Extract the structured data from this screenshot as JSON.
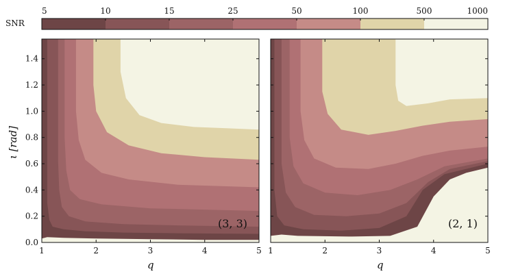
{
  "chart_data": {
    "type": "contour",
    "colorbar": {
      "title": "SNR",
      "levels": [
        "5",
        "10",
        "15",
        "25",
        "50",
        "100",
        "500",
        "1000"
      ],
      "colors": [
        "#6d4546",
        "#875557",
        "#9c6466",
        "#b07174",
        "#c58b87",
        "#e0d4a9",
        "#f4f4e4"
      ]
    },
    "xlabel": "q",
    "ylabel": "ι [rad]",
    "xlim": [
      1,
      5
    ],
    "ylim": [
      0,
      1.55
    ],
    "x_ticks": [
      1,
      2,
      3,
      4,
      5
    ],
    "y_ticks": [
      0.0,
      0.2,
      0.4,
      0.6,
      0.8,
      1.0,
      1.2,
      1.4
    ],
    "x_tick_labels": [
      "1",
      "2",
      "3",
      "4",
      "5"
    ],
    "y_tick_labels": [
      "0.0",
      "0.2",
      "0.4",
      "0.6",
      "0.8",
      "1.0",
      "1.2",
      "1.4"
    ],
    "panels": [
      {
        "annotation": "(3, 3)",
        "contours": [
          {
            "level": "5",
            "points": [
              [
                1.0,
                1.55
              ],
              [
                1.0,
                0.03
              ],
              [
                1.1,
                0.04
              ],
              [
                1.4,
                0.035
              ],
              [
                2,
                0.03
              ],
              [
                3,
                0.025
              ],
              [
                4,
                0.02
              ],
              [
                5,
                0.02
              ],
              [
                5,
                1.55
              ]
            ]
          },
          {
            "level": "10",
            "points": [
              [
                1.1,
                1.55
              ],
              [
                1.1,
                0.3
              ],
              [
                1.14,
                0.17
              ],
              [
                1.2,
                0.12
              ],
              [
                1.4,
                0.1
              ],
              [
                1.8,
                0.085
              ],
              [
                2.5,
                0.075
              ],
              [
                3.5,
                0.07
              ],
              [
                5,
                0.065
              ],
              [
                5,
                1.55
              ]
            ]
          },
          {
            "level": "15",
            "points": [
              [
                1.3,
                1.55
              ],
              [
                1.3,
                0.62
              ],
              [
                1.32,
                0.4
              ],
              [
                1.37,
                0.27
              ],
              [
                1.5,
                0.2
              ],
              [
                1.8,
                0.16
              ],
              [
                2.5,
                0.14
              ],
              [
                3.5,
                0.13
              ],
              [
                5,
                0.12
              ],
              [
                5,
                1.55
              ]
            ]
          },
          {
            "level": "25",
            "points": [
              [
                1.42,
                1.55
              ],
              [
                1.42,
                0.8
              ],
              [
                1.45,
                0.55
              ],
              [
                1.52,
                0.4
              ],
              [
                1.7,
                0.33
              ],
              [
                2.1,
                0.29
              ],
              [
                3,
                0.26
              ],
              [
                4,
                0.25
              ],
              [
                5,
                0.24
              ],
              [
                5,
                1.55
              ]
            ]
          },
          {
            "level": "50",
            "points": [
              [
                1.63,
                1.55
              ],
              [
                1.63,
                1.0
              ],
              [
                1.68,
                0.78
              ],
              [
                1.8,
                0.63
              ],
              [
                2.1,
                0.53
              ],
              [
                2.6,
                0.48
              ],
              [
                3.5,
                0.44
              ],
              [
                5,
                0.42
              ],
              [
                5,
                1.55
              ]
            ]
          },
          {
            "level": "100",
            "points": [
              [
                1.95,
                1.55
              ],
              [
                1.95,
                1.2
              ],
              [
                2.0,
                1.0
              ],
              [
                2.2,
                0.84
              ],
              [
                2.6,
                0.74
              ],
              [
                3.2,
                0.68
              ],
              [
                4,
                0.65
              ],
              [
                5,
                0.63
              ],
              [
                5,
                1.55
              ]
            ]
          },
          {
            "level": "500",
            "points": [
              [
                2.45,
                1.55
              ],
              [
                2.45,
                1.3
              ],
              [
                2.55,
                1.1
              ],
              [
                2.8,
                0.97
              ],
              [
                3.2,
                0.91
              ],
              [
                3.8,
                0.88
              ],
              [
                4.4,
                0.87
              ],
              [
                5,
                0.86
              ],
              [
                5,
                1.55
              ]
            ]
          }
        ]
      },
      {
        "annotation": "(2, 1)",
        "contours": [
          {
            "level": "5",
            "points": [
              [
                1.0,
                1.55
              ],
              [
                1.0,
                0.05
              ],
              [
                1.2,
                0.06
              ],
              [
                1.5,
                0.05
              ],
              [
                2.5,
                0.045
              ],
              [
                3.2,
                0.05
              ],
              [
                3.7,
                0.12
              ],
              [
                4.0,
                0.35
              ],
              [
                4.3,
                0.48
              ],
              [
                4.6,
                0.53
              ],
              [
                5,
                0.57
              ],
              [
                5,
                1.55
              ]
            ]
          },
          {
            "level": "10",
            "points": [
              [
                1.07,
                1.55
              ],
              [
                1.07,
                0.4
              ],
              [
                1.12,
                0.2
              ],
              [
                1.25,
                0.13
              ],
              [
                1.6,
                0.1
              ],
              [
                2.3,
                0.09
              ],
              [
                3,
                0.11
              ],
              [
                3.5,
                0.2
              ],
              [
                3.8,
                0.4
              ],
              [
                4.2,
                0.52
              ],
              [
                5,
                0.6
              ],
              [
                5,
                1.55
              ]
            ]
          },
          {
            "level": "15",
            "points": [
              [
                1.2,
                1.55
              ],
              [
                1.2,
                0.6
              ],
              [
                1.28,
                0.38
              ],
              [
                1.45,
                0.27
              ],
              [
                1.8,
                0.21
              ],
              [
                2.4,
                0.2
              ],
              [
                3,
                0.22
              ],
              [
                3.5,
                0.3
              ],
              [
                3.9,
                0.46
              ],
              [
                4.3,
                0.56
              ],
              [
                5,
                0.62
              ],
              [
                5,
                1.55
              ]
            ]
          },
          {
            "level": "25",
            "points": [
              [
                1.35,
                1.55
              ],
              [
                1.35,
                0.8
              ],
              [
                1.42,
                0.58
              ],
              [
                1.6,
                0.45
              ],
              [
                2,
                0.38
              ],
              [
                2.6,
                0.36
              ],
              [
                3.2,
                0.4
              ],
              [
                3.7,
                0.48
              ],
              [
                4.2,
                0.58
              ],
              [
                5,
                0.64
              ],
              [
                5,
                1.55
              ]
            ]
          },
          {
            "level": "50",
            "points": [
              [
                1.55,
                1.55
              ],
              [
                1.55,
                1.0
              ],
              [
                1.62,
                0.78
              ],
              [
                1.8,
                0.64
              ],
              [
                2.2,
                0.57
              ],
              [
                2.8,
                0.56
              ],
              [
                3.3,
                0.6
              ],
              [
                3.8,
                0.66
              ],
              [
                4.3,
                0.7
              ],
              [
                5,
                0.73
              ],
              [
                5,
                1.55
              ]
            ]
          },
          {
            "level": "100",
            "points": [
              [
                1.95,
                1.55
              ],
              [
                1.95,
                1.15
              ],
              [
                2.05,
                0.98
              ],
              [
                2.3,
                0.86
              ],
              [
                2.8,
                0.82
              ],
              [
                3.3,
                0.85
              ],
              [
                3.8,
                0.89
              ],
              [
                4.3,
                0.92
              ],
              [
                5,
                0.94
              ],
              [
                5,
                1.55
              ]
            ]
          },
          {
            "level": "500",
            "points": [
              [
                3.3,
                1.55
              ],
              [
                3.3,
                1.2
              ],
              [
                3.35,
                1.08
              ],
              [
                3.5,
                1.04
              ],
              [
                3.9,
                1.06
              ],
              [
                4.3,
                1.09
              ],
              [
                5,
                1.1
              ],
              [
                5,
                1.55
              ]
            ]
          }
        ]
      }
    ]
  }
}
